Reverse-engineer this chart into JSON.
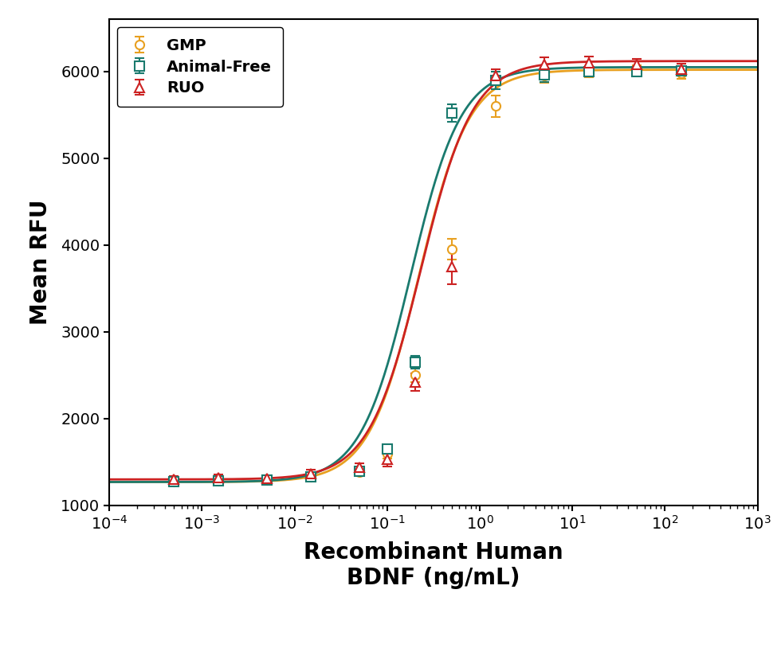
{
  "title": "",
  "xlabel": "Recombinant Human\nBDNF (ng/mL)",
  "ylabel": "Mean RFU",
  "xlim": [
    0.0001,
    1000.0
  ],
  "ylim": [
    1000,
    6600
  ],
  "yticks": [
    1000,
    2000,
    3000,
    4000,
    5000,
    6000
  ],
  "series": [
    {
      "label": "GMP",
      "color": "#E8A020",
      "marker": "o",
      "ec50": 0.22,
      "bottom": 1270,
      "top": 6020,
      "hill": 1.6,
      "x_data": [
        0.0005,
        0.0015,
        0.005,
        0.015,
        0.05,
        0.1,
        0.2,
        0.5,
        1.5,
        5,
        15,
        50,
        150
      ],
      "y_data": [
        1270,
        1280,
        1290,
        1330,
        1380,
        1600,
        2500,
        3950,
        5600,
        5950,
        5990,
        6020,
        5980
      ],
      "yerr": [
        30,
        25,
        20,
        30,
        35,
        60,
        80,
        120,
        120,
        80,
        60,
        50,
        60
      ]
    },
    {
      "label": "Animal-Free",
      "color": "#1A7A6E",
      "marker": "s",
      "ec50": 0.18,
      "bottom": 1270,
      "top": 6050,
      "hill": 1.6,
      "x_data": [
        0.0005,
        0.0015,
        0.005,
        0.015,
        0.05,
        0.1,
        0.2,
        0.5,
        1.5,
        5,
        15,
        50,
        150
      ],
      "y_data": [
        1270,
        1285,
        1290,
        1330,
        1390,
        1650,
        2650,
        5520,
        5900,
        5960,
        6000,
        6000,
        6010
      ],
      "yerr": [
        25,
        20,
        25,
        25,
        30,
        50,
        70,
        100,
        100,
        80,
        60,
        50,
        55
      ]
    },
    {
      "label": "RUO",
      "color": "#CC2222",
      "marker": "^",
      "ec50": 0.23,
      "bottom": 1300,
      "top": 6120,
      "hill": 1.55,
      "x_data": [
        0.0005,
        0.0015,
        0.005,
        0.015,
        0.05,
        0.1,
        0.2,
        0.5,
        1.5,
        5,
        15,
        50,
        150
      ],
      "y_data": [
        1300,
        1320,
        1310,
        1370,
        1440,
        1530,
        2420,
        3750,
        5950,
        6080,
        6100,
        6080,
        6030
      ],
      "yerr": [
        40,
        35,
        30,
        40,
        50,
        80,
        100,
        200,
        80,
        80,
        70,
        65,
        60
      ]
    }
  ],
  "legend_fontsize": 14,
  "axis_label_fontsize": 20,
  "tick_fontsize": 14,
  "marker_size": 8,
  "line_width": 2.0,
  "background_color": "#ffffff"
}
